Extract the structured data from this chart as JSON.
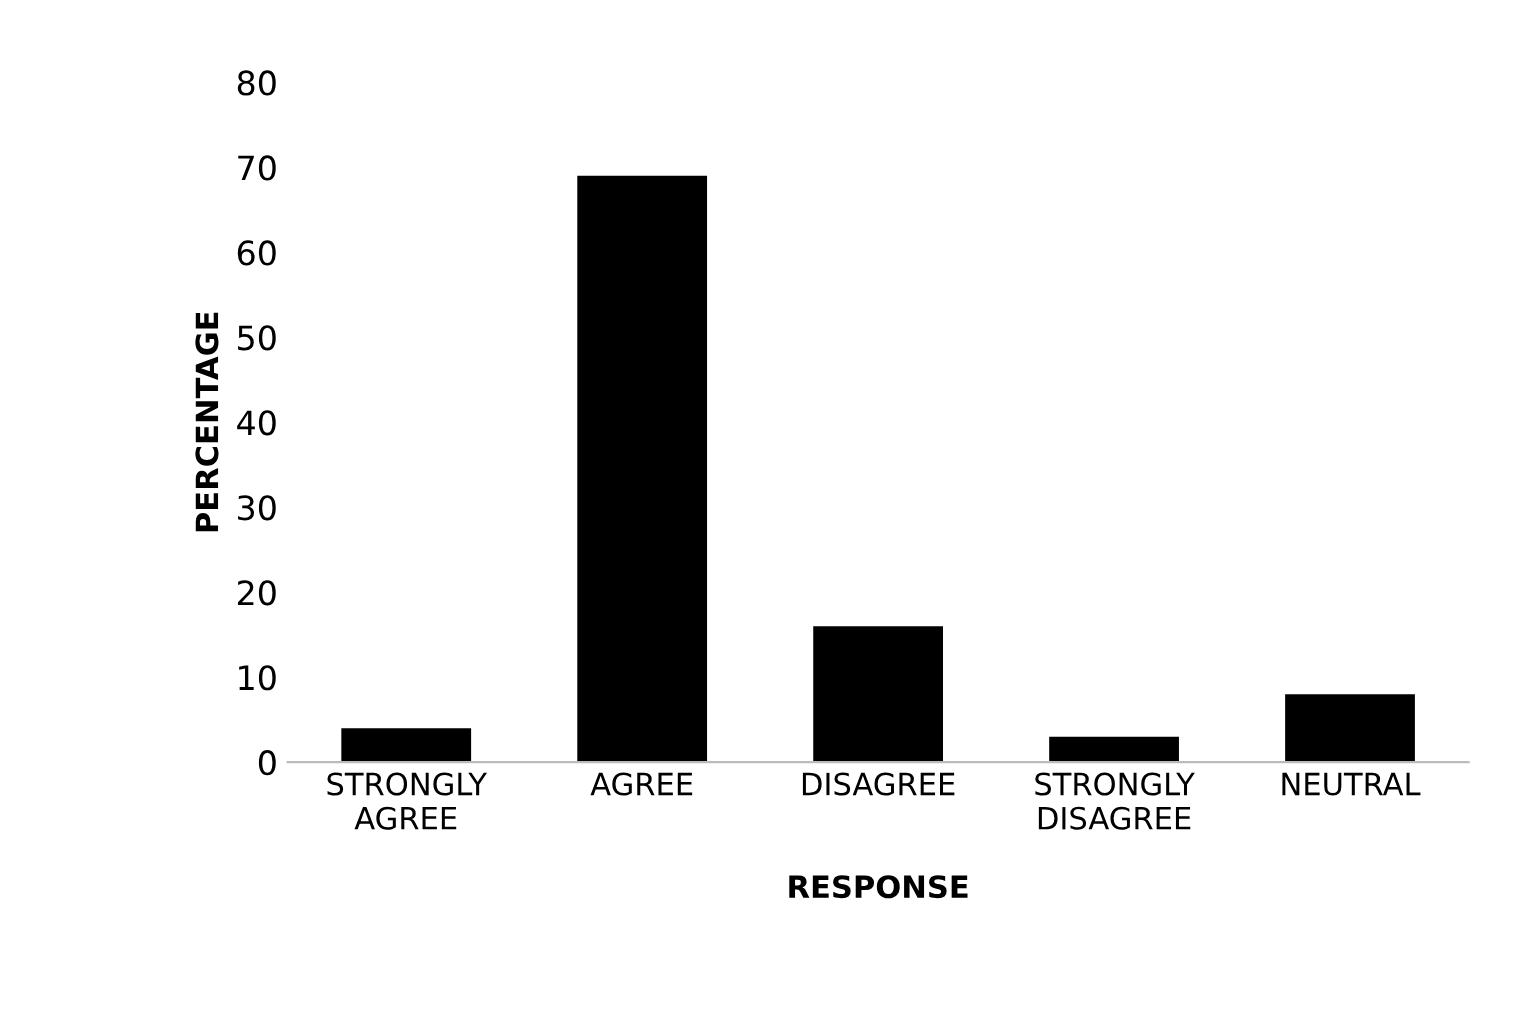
{
  "chart_data": {
    "type": "bar",
    "xlabel": "RESPONSE",
    "ylabel": "PERCENTAGE",
    "categories": [
      "STRONGLY\nAGREE",
      "AGREE",
      "DISAGREE",
      "STRONGLY\nDISAGREE",
      "NEUTRAL"
    ],
    "values": [
      4,
      69,
      16,
      3,
      8
    ],
    "color": "#000000",
    "ylim": [
      0,
      80
    ],
    "yticks": [
      0,
      10,
      20,
      30,
      40,
      50,
      60,
      70,
      80
    ],
    "grid": false
  }
}
